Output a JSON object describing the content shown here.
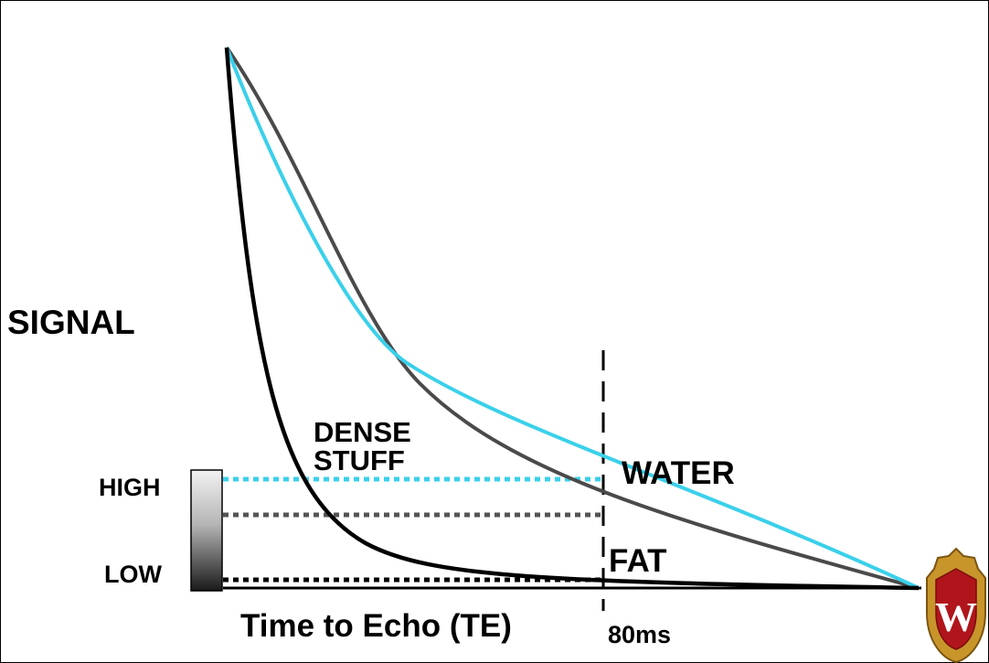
{
  "labels": {
    "signal": "SIGNAL",
    "high": "HIGH",
    "low": "LOW",
    "dense_line1": "DENSE",
    "dense_line2": "STUFF",
    "water": "WATER",
    "fat": "FAT",
    "te_axis": "Time to Echo (TE)",
    "te_marker": "80ms"
  },
  "curves": [
    {
      "id": "dense-stuff",
      "color": "#000000"
    },
    {
      "id": "fat",
      "color": "#4a4a4a"
    },
    {
      "id": "water",
      "color": "#3ad0ea"
    }
  ],
  "grayscale_bar": {
    "top_color": "#f2f2f2",
    "bottom_color": "#1a1a1a"
  },
  "logo": {
    "icon": "uw-crest-icon",
    "letter": "W",
    "colors": {
      "gold": "#c8952a",
      "red": "#b0151b"
    }
  }
}
